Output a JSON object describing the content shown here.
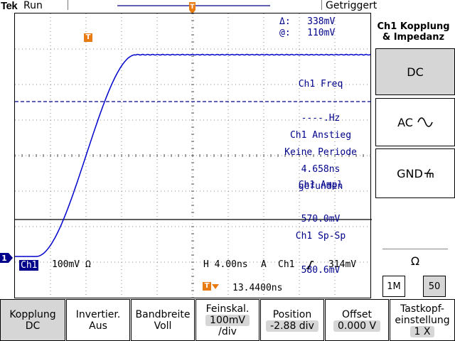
{
  "top_bar": {
    "brand": "Tek",
    "run_status": "Run",
    "trigger_state": "Getriggert"
  },
  "cursor_readout": {
    "delta_label": "Δ:",
    "delta_value": "338mV",
    "at_label": "@:",
    "at_value": "110mV"
  },
  "measurements": [
    {
      "name": "Ch1 Freq",
      "lines": [
        "----.Hz",
        "Keine Periode",
        "gefunden"
      ]
    },
    {
      "name": "Ch1 Anstieg",
      "lines": [
        "4.658ns"
      ]
    },
    {
      "name": "Ch1 Ampl",
      "lines": [
        "570.0mV"
      ]
    },
    {
      "name": "Ch1 Sp-Sp",
      "lines": [
        "580.6mV"
      ]
    }
  ],
  "status_line": {
    "channel_badge": "Ch1",
    "channel_scale": "100mV Ω",
    "horizontal": "H 4.00ns",
    "trigger_mode": "A",
    "trigger_source": "Ch1",
    "trigger_slope_icon": "rising-edge-icon",
    "trigger_level": "314mV",
    "trigger_position": "13.4400ns"
  },
  "markers": {
    "trigger": "T",
    "channel": "1"
  },
  "side_menu": {
    "title_line1": "Ch1 Kopplung",
    "title_line2": "& Impedanz",
    "buttons": [
      {
        "label": "DC",
        "icon": ""
      },
      {
        "label": "AC",
        "icon": "sine-wave-icon"
      },
      {
        "label": "GND",
        "icon": "ground-icon"
      }
    ],
    "impedance_symbol": "Ω",
    "impedance_options": [
      "1M",
      "50"
    ],
    "impedance_selected": "50"
  },
  "bottom_menu": [
    {
      "line1": "Kopplung",
      "line2": "DC"
    },
    {
      "line1": "Invertier.",
      "line2": "Aus"
    },
    {
      "line1": "Bandbreite",
      "line2": "Voll"
    },
    {
      "line1": "Feinskal.",
      "line2": "100mV",
      "line3": "/div"
    },
    {
      "line1": "Position",
      "line2": "-2.88 div"
    },
    {
      "line1": "Offset",
      "line2": "0.000 V"
    },
    {
      "line1": "Tastkopf-",
      "line2": "einstellung",
      "line3": "1 X"
    }
  ],
  "colors": {
    "waveform": "#0000cc",
    "text_blue": "#00008b",
    "marker_orange": "#e87b12",
    "selected_gray": "#d6d6d6"
  }
}
